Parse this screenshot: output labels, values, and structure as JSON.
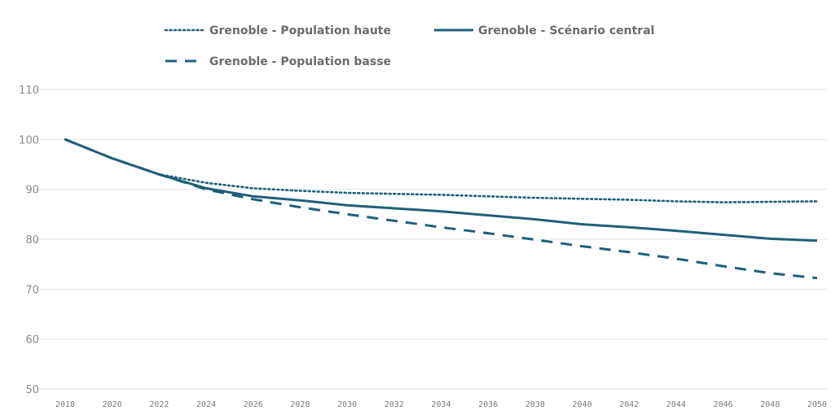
{
  "chart_data": {
    "type": "line",
    "x": [
      2018,
      2020,
      2022,
      2024,
      2026,
      2028,
      2030,
      2032,
      2034,
      2036,
      2038,
      2040,
      2042,
      2044,
      2046,
      2048,
      2050
    ],
    "xtick_labels": [
      "2018",
      "2020",
      "2022",
      "2024",
      "2026",
      "2028",
      "2030",
      "2032",
      "2034",
      "2036",
      "2038",
      "2040",
      "2042",
      "2044",
      "2046",
      "2048",
      "2050"
    ],
    "ylim": [
      50,
      110
    ],
    "yticks": [
      50,
      60,
      70,
      80,
      90,
      100,
      110
    ],
    "grid": true,
    "legend_position": "top",
    "series": [
      {
        "name": "Grenoble  - Population haute",
        "style": "dotted",
        "color": "#1f5f78",
        "values": [
          100,
          96.2,
          93.0,
          91.3,
          90.2,
          89.7,
          89.3,
          89.1,
          88.9,
          88.6,
          88.3,
          88.1,
          87.9,
          87.6,
          87.4,
          87.5,
          87.6
        ]
      },
      {
        "name": "Grenoble - Scénario central",
        "style": "solid",
        "color": "#1f5f78",
        "values": [
          100,
          96.2,
          93.0,
          90.2,
          88.6,
          87.8,
          86.8,
          86.2,
          85.6,
          84.8,
          84.0,
          83.0,
          82.4,
          81.7,
          80.9,
          80.1,
          79.7
        ]
      },
      {
        "name": "Grenoble - Population basse",
        "style": "dashed",
        "color": "#1f5f78",
        "values": [
          100,
          96.2,
          93.0,
          90.0,
          88.0,
          86.4,
          85.0,
          83.7,
          82.4,
          81.2,
          79.9,
          78.6,
          77.4,
          76.1,
          74.6,
          73.2,
          72.2
        ]
      }
    ]
  }
}
